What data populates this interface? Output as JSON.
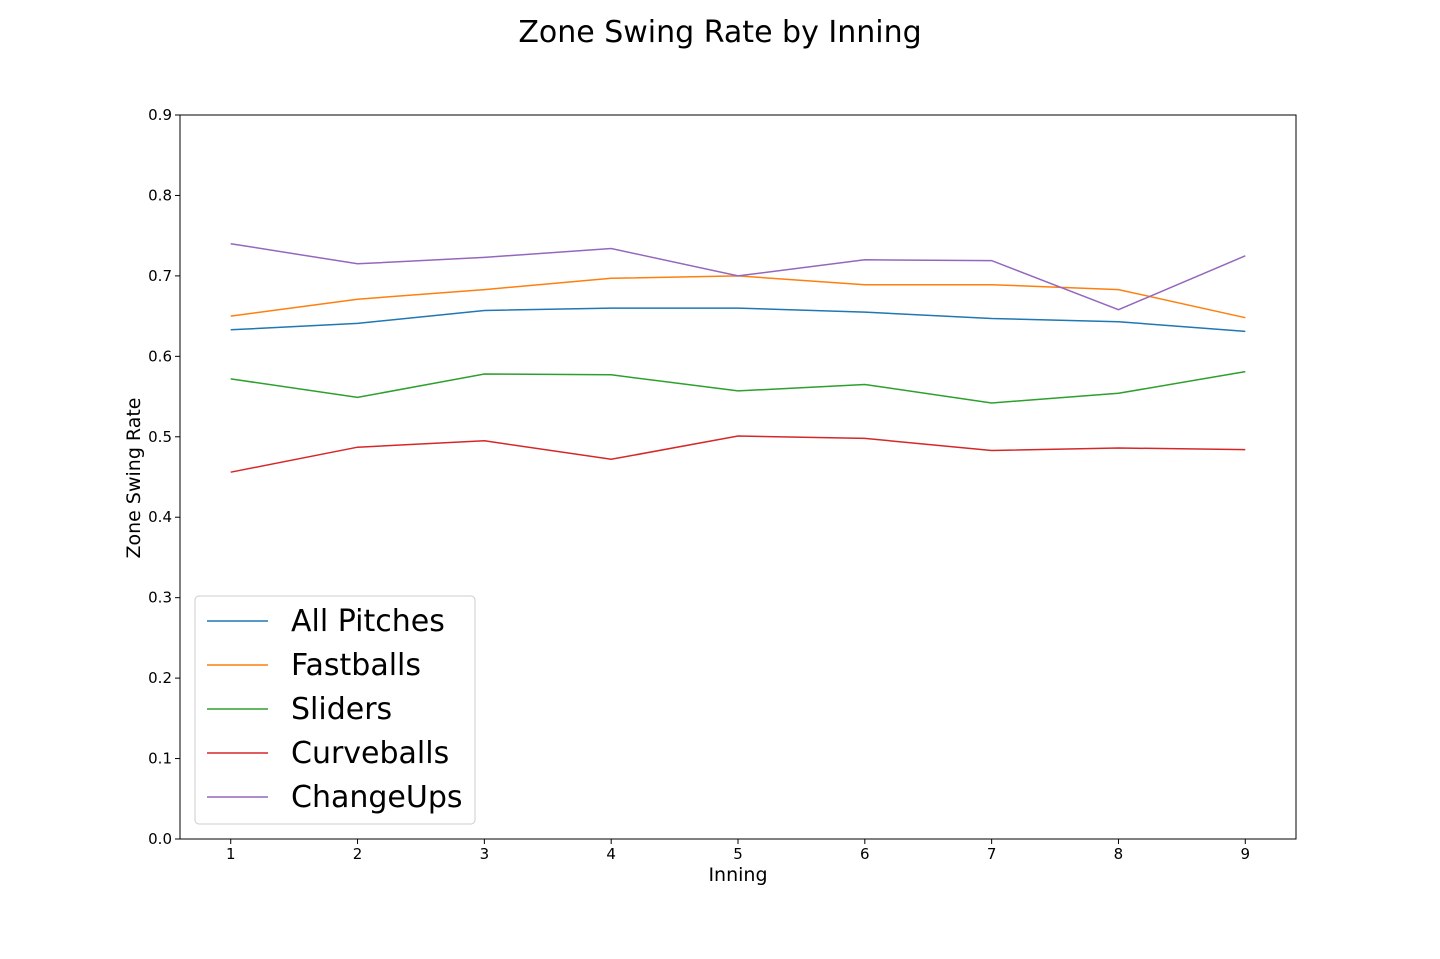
{
  "chart_data": {
    "type": "line",
    "title": "Zone Swing Rate by Inning",
    "xlabel": "Inning",
    "ylabel": "Zone Swing Rate",
    "x": [
      1,
      2,
      3,
      4,
      5,
      6,
      7,
      8,
      9
    ],
    "x_ticks": [
      "1",
      "2",
      "3",
      "4",
      "5",
      "6",
      "7",
      "8",
      "9"
    ],
    "xlim": [
      0.6,
      9.4
    ],
    "ylim": [
      0.0,
      0.9
    ],
    "y_ticks": [
      "0.0",
      "0.1",
      "0.2",
      "0.3",
      "0.4",
      "0.5",
      "0.6",
      "0.7",
      "0.8",
      "0.9"
    ],
    "grid": false,
    "legend_position": "lower-left",
    "series": [
      {
        "name": "All Pitches",
        "color": "#1f77b4",
        "values": [
          0.633,
          0.641,
          0.657,
          0.66,
          0.66,
          0.655,
          0.647,
          0.643,
          0.631
        ]
      },
      {
        "name": "Fastballs",
        "color": "#ff7f0e",
        "values": [
          0.65,
          0.671,
          0.683,
          0.697,
          0.7,
          0.689,
          0.689,
          0.683,
          0.648
        ]
      },
      {
        "name": "Sliders",
        "color": "#2ca02c",
        "values": [
          0.572,
          0.549,
          0.578,
          0.577,
          0.557,
          0.565,
          0.542,
          0.554,
          0.581
        ]
      },
      {
        "name": "Curveballs",
        "color": "#d62728",
        "values": [
          0.456,
          0.487,
          0.495,
          0.472,
          0.501,
          0.498,
          0.483,
          0.486,
          0.484
        ]
      },
      {
        "name": "ChangeUps",
        "color": "#9467bd",
        "values": [
          0.74,
          0.715,
          0.723,
          0.734,
          0.7,
          0.72,
          0.719,
          0.658,
          0.725
        ]
      }
    ]
  }
}
